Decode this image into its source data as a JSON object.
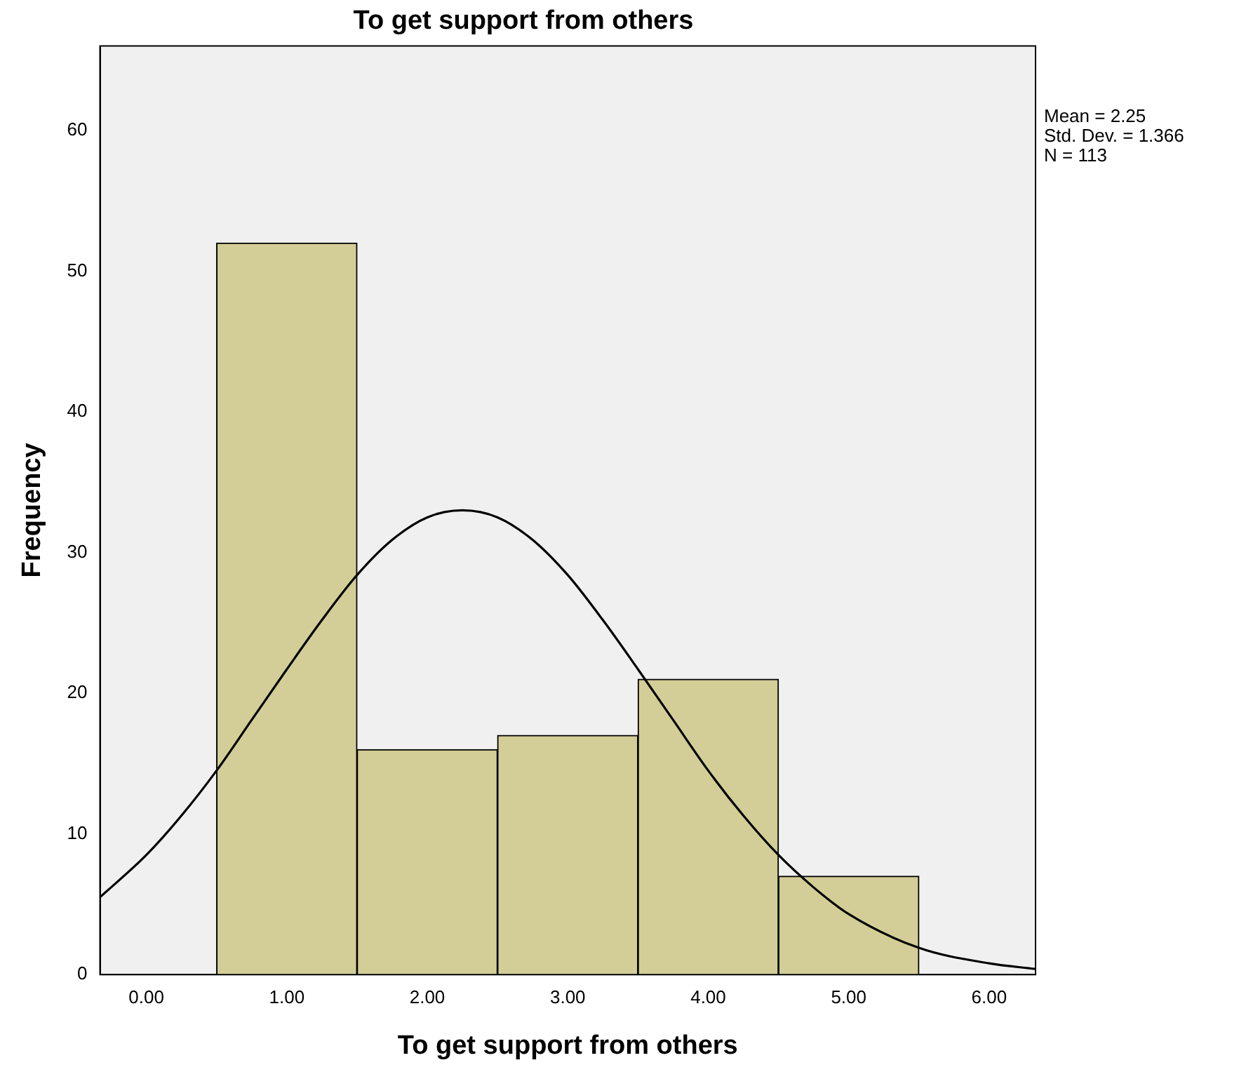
{
  "chart_data": {
    "type": "histogram",
    "title": "To get support from others",
    "xlabel": "To get support from others",
    "ylabel": "Frequency",
    "bins": [
      0.5,
      1.5,
      2.5,
      3.5,
      4.5,
      5.5
    ],
    "values": [
      52,
      16,
      17,
      21,
      7
    ],
    "color": "#d3ce97",
    "series": [
      {
        "type": "line",
        "color": "#000000",
        "x": [
          -0.33,
          0,
          0.25,
          0.5,
          0.75,
          1,
          1.25,
          1.5,
          1.75,
          2,
          2.25,
          2.5,
          2.75,
          3,
          3.25,
          3.5,
          3.75,
          4,
          4.25,
          4.5,
          4.75,
          5,
          5.5,
          6,
          6.33
        ],
        "values": [
          5.5,
          8.5,
          11.3,
          14.5,
          18.1,
          21.7,
          25.2,
          28.4,
          30.9,
          32.5,
          33,
          32.5,
          30.9,
          28.4,
          25.2,
          21.7,
          18.1,
          14.5,
          11.3,
          8.5,
          6.2,
          4.3,
          1.9,
          0.8,
          0.4
        ]
      }
    ],
    "xlim": [
      -0.33,
      6.33
    ],
    "xticks": [
      {
        "value": 0,
        "label": "0.00"
      },
      {
        "value": 1,
        "label": "1.00"
      },
      {
        "value": 2,
        "label": "2.00"
      },
      {
        "value": 3,
        "label": "3.00"
      },
      {
        "value": 4,
        "label": "4.00"
      },
      {
        "value": 5,
        "label": "5.00"
      },
      {
        "value": 6,
        "label": "6.00"
      }
    ],
    "ylim": [
      0,
      66
    ],
    "yticks": [
      0,
      10,
      20,
      30,
      40,
      50,
      60
    ],
    "grid": false,
    "legend": false,
    "marker": "none",
    "line_style": "solid",
    "annotations": [
      "Mean = 2.25",
      "Std. Dev. = 1.366",
      "N = 113"
    ]
  }
}
